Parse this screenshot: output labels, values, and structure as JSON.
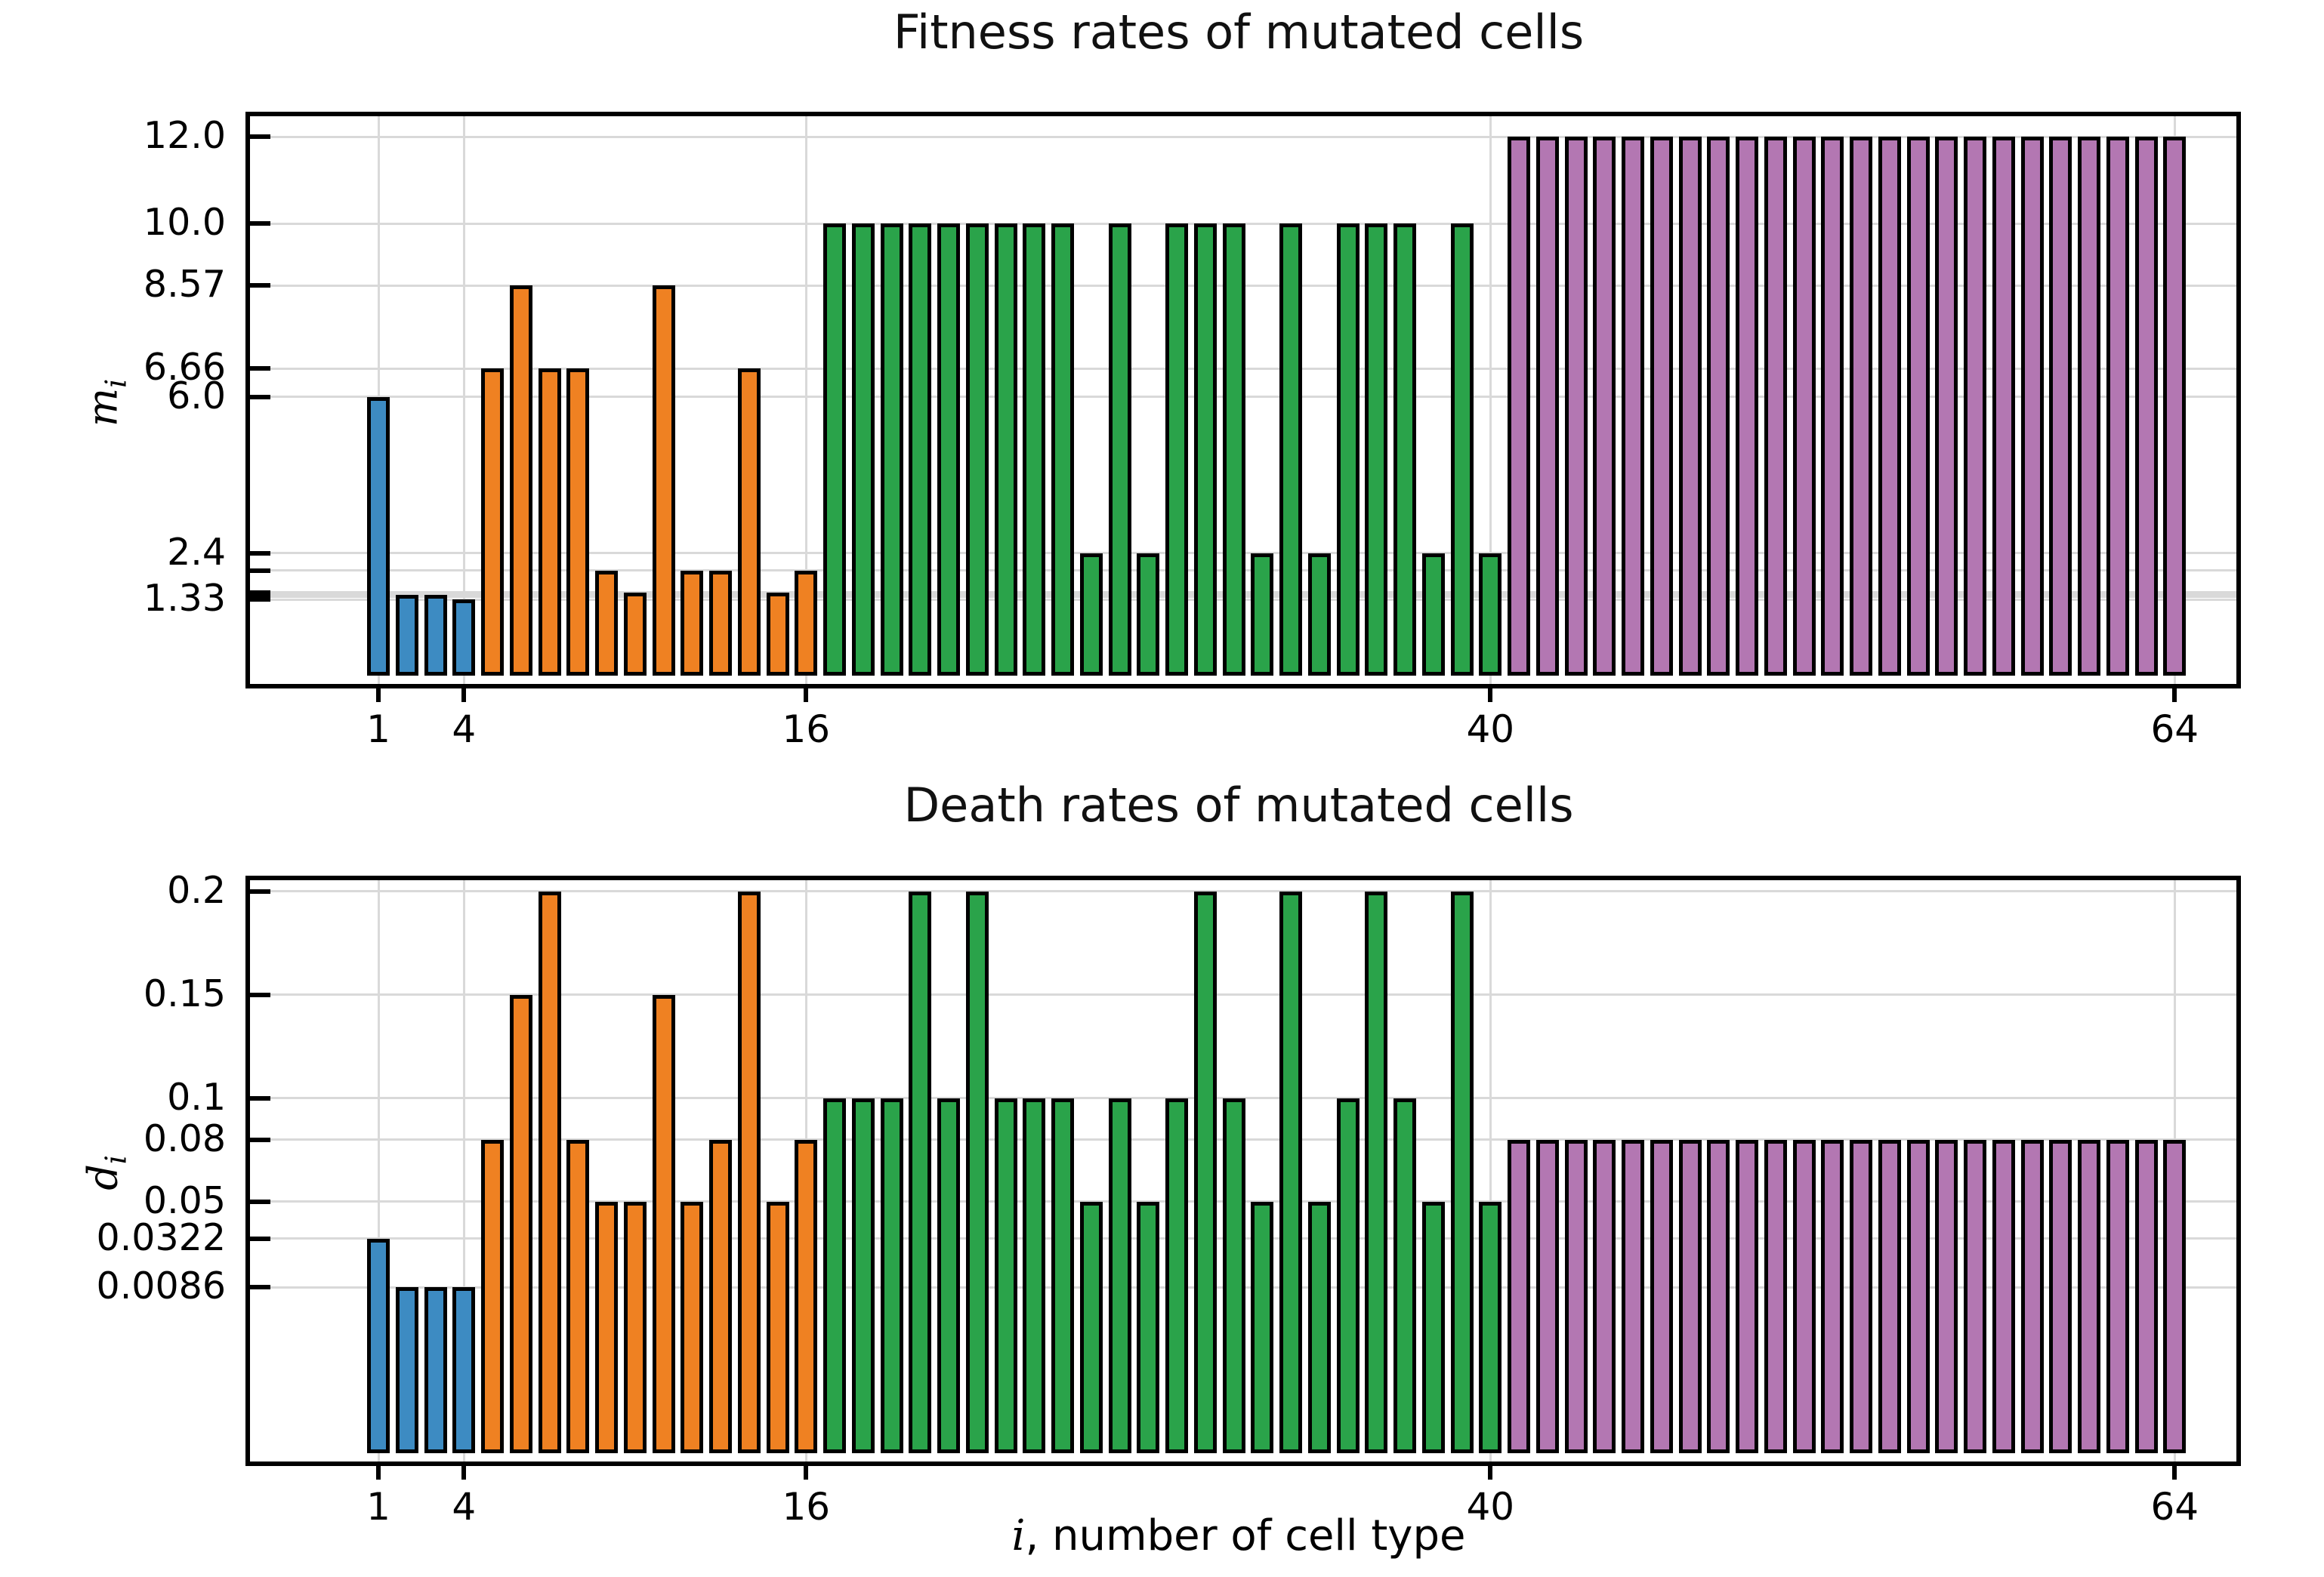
{
  "figure": {
    "xlabel": {
      "italic_var": "i",
      "rest": ", number of cell type"
    }
  },
  "colors": {
    "blue": "#3d8bc2",
    "orange": "#ef8122",
    "green": "#2aa34a",
    "purple": "#b377b2",
    "bar_outline": "#000000",
    "grid": "#d9d9d9"
  },
  "chart_data": [
    {
      "type": "bar",
      "title": "Fitness rates of mutated cells",
      "ylabel": {
        "main": "m",
        "sub": "i"
      },
      "x_start": 1,
      "x_end": 64,
      "values": [
        6.0,
        1.45,
        1.45,
        1.33,
        6.66,
        8.57,
        6.66,
        6.66,
        2.0,
        1.5,
        8.57,
        2.0,
        2.0,
        6.66,
        1.5,
        2.0,
        10.0,
        10.0,
        10.0,
        10.0,
        10.0,
        10.0,
        10.0,
        10.0,
        10.0,
        2.4,
        10.0,
        2.4,
        10.0,
        10.0,
        10.0,
        2.4,
        10.0,
        2.4,
        10.0,
        10.0,
        10.0,
        2.4,
        10.0,
        2.4,
        12.0,
        12.0,
        12.0,
        12.0,
        12.0,
        12.0,
        12.0,
        12.0,
        12.0,
        12.0,
        12.0,
        12.0,
        12.0,
        12.0,
        12.0,
        12.0,
        12.0,
        12.0,
        12.0,
        12.0,
        12.0,
        12.0,
        12.0,
        12.0
      ],
      "segments": [
        {
          "from": 1,
          "to": 4,
          "color": "blue"
        },
        {
          "from": 5,
          "to": 16,
          "color": "orange"
        },
        {
          "from": 17,
          "to": 40,
          "color": "green"
        },
        {
          "from": 41,
          "to": 64,
          "color": "purple"
        }
      ],
      "ylim": [
        -0.61,
        12.47
      ],
      "yticks": [
        {
          "v": 12.0,
          "label": "12.0"
        },
        {
          "v": 10.0,
          "label": "10.0"
        },
        {
          "v": 8.57,
          "label": "8.57"
        },
        {
          "v": 6.66,
          "label": "6.66"
        },
        {
          "v": 6.0,
          "label": "6.0"
        },
        {
          "v": 2.4,
          "label": "2.4"
        },
        {
          "v": 2.0,
          "label": ""
        },
        {
          "v": 1.5,
          "label": ""
        },
        {
          "v": 1.45,
          "label": ""
        },
        {
          "v": 1.4,
          "label": ""
        },
        {
          "v": 1.33,
          "label": "1.33"
        }
      ],
      "xticks": [
        {
          "v": 1,
          "label": "1"
        },
        {
          "v": 4,
          "label": "4"
        },
        {
          "v": 16,
          "label": "16"
        },
        {
          "v": 40,
          "label": "40"
        },
        {
          "v": 64,
          "label": "64"
        }
      ],
      "grid": true,
      "legend": "none"
    },
    {
      "type": "bar",
      "title": "Death rates of mutated cells",
      "ylabel": {
        "main": "d",
        "sub": "i"
      },
      "x_start": 1,
      "x_end": 64,
      "values": [
        0.0322,
        0.0086,
        0.0086,
        0.0086,
        0.08,
        0.15,
        0.2,
        0.08,
        0.05,
        0.05,
        0.15,
        0.05,
        0.08,
        0.2,
        0.05,
        0.08,
        0.1,
        0.1,
        0.1,
        0.2,
        0.1,
        0.2,
        0.1,
        0.1,
        0.1,
        0.05,
        0.1,
        0.05,
        0.1,
        0.2,
        0.1,
        0.05,
        0.2,
        0.05,
        0.1,
        0.2,
        0.1,
        0.05,
        0.2,
        0.05,
        0.08,
        0.08,
        0.08,
        0.08,
        0.08,
        0.08,
        0.08,
        0.08,
        0.08,
        0.08,
        0.08,
        0.08,
        0.08,
        0.08,
        0.08,
        0.08,
        0.08,
        0.08,
        0.08,
        0.08,
        0.08,
        0.08,
        0.08,
        0.08
      ],
      "segments": [
        {
          "from": 1,
          "to": 4,
          "color": "blue"
        },
        {
          "from": 5,
          "to": 16,
          "color": "orange"
        },
        {
          "from": 17,
          "to": 40,
          "color": "green"
        },
        {
          "from": 41,
          "to": 64,
          "color": "purple"
        }
      ],
      "ylim": [
        -0.0755,
        0.2054
      ],
      "yticks": [
        {
          "v": 0.2,
          "label": "0.2"
        },
        {
          "v": 0.15,
          "label": "0.15"
        },
        {
          "v": 0.1,
          "label": "0.1"
        },
        {
          "v": 0.08,
          "label": "0.08"
        },
        {
          "v": 0.05,
          "label": "0.05"
        },
        {
          "v": 0.0322,
          "label": "0.0322"
        },
        {
          "v": 0.0086,
          "label": "0.0086"
        }
      ],
      "xticks": [
        {
          "v": 1,
          "label": "1"
        },
        {
          "v": 4,
          "label": "4"
        },
        {
          "v": 16,
          "label": "16"
        },
        {
          "v": 40,
          "label": "40"
        },
        {
          "v": 64,
          "label": "64"
        }
      ],
      "grid": true,
      "legend": "none"
    }
  ]
}
